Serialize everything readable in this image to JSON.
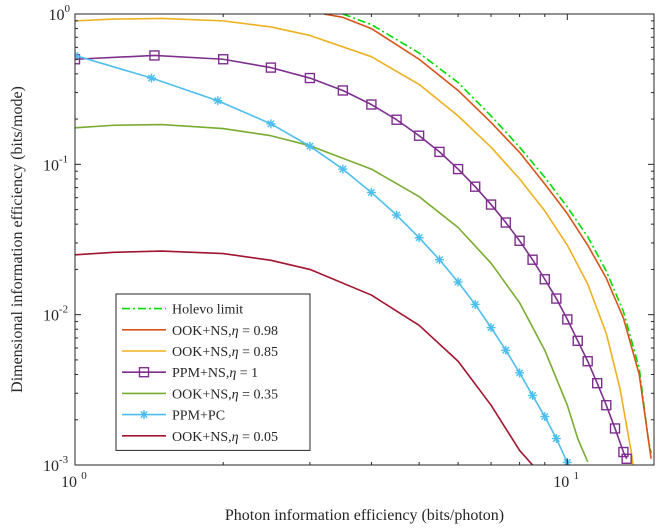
{
  "chart_data": {
    "type": "line",
    "title": "",
    "xlabel": "Photon information efficiency (bits/photon)",
    "ylabel": "Dimensional information efficiency (bits/mode)",
    "xscale": "log",
    "yscale": "log",
    "xlim": [
      1,
      15
    ],
    "ylim": [
      0.001,
      1
    ],
    "grid": false,
    "legend_position": "bottom-left",
    "x_ticks": [
      {
        "base": "10",
        "exp": "0",
        "value": 1
      },
      {
        "base": "10",
        "exp": "1",
        "value": 10
      }
    ],
    "y_ticks": [
      {
        "base": "10",
        "exp": "-3",
        "value": 0.001
      },
      {
        "base": "10",
        "exp": "-2",
        "value": 0.01
      },
      {
        "base": "10",
        "exp": "-1",
        "value": 0.1
      },
      {
        "base": "10",
        "exp": "0",
        "value": 1
      }
    ],
    "series": [
      {
        "name": "Holevo limit",
        "legend_prefix": "Holevo limit",
        "legend_eta": "",
        "color": "#00dd00",
        "dash": "8 3 2 3",
        "marker": "none",
        "points": [
          [
            3.5,
            1.0
          ],
          [
            4,
            0.85
          ],
          [
            5,
            0.55
          ],
          [
            6,
            0.35
          ],
          [
            7,
            0.21
          ],
          [
            8,
            0.13
          ],
          [
            9,
            0.082
          ],
          [
            10,
            0.052
          ],
          [
            11,
            0.033
          ],
          [
            12,
            0.0195
          ],
          [
            13,
            0.0105
          ],
          [
            14,
            0.0044
          ],
          [
            14.6,
            0.0015
          ],
          [
            14.8,
            0.0012
          ]
        ]
      },
      {
        "name": "OOK+NS, η = 0.98",
        "legend_prefix": "OOK+NS,",
        "legend_eta": " = 0.98",
        "color": "#d95319",
        "dash": "",
        "marker": "none",
        "points": [
          [
            3.2,
            1.0
          ],
          [
            3.5,
            0.95
          ],
          [
            4,
            0.8
          ],
          [
            5,
            0.5
          ],
          [
            6,
            0.31
          ],
          [
            7,
            0.19
          ],
          [
            8,
            0.12
          ],
          [
            9,
            0.074
          ],
          [
            10,
            0.047
          ],
          [
            11,
            0.029
          ],
          [
            12,
            0.0175
          ],
          [
            13,
            0.0095
          ],
          [
            14,
            0.004
          ],
          [
            14.6,
            0.0015
          ],
          [
            14.8,
            0.0011
          ]
        ]
      },
      {
        "name": "OOK+NS, η = 0.85",
        "legend_prefix": "OOK+NS,",
        "legend_eta": " = 0.85",
        "color": "#edb120",
        "dash": "",
        "marker": "none",
        "points": [
          [
            1,
            0.9
          ],
          [
            1.2,
            0.925
          ],
          [
            1.5,
            0.935
          ],
          [
            2,
            0.9
          ],
          [
            2.5,
            0.82
          ],
          [
            3,
            0.72
          ],
          [
            4,
            0.52
          ],
          [
            5,
            0.34
          ],
          [
            6,
            0.21
          ],
          [
            7,
            0.13
          ],
          [
            8,
            0.08
          ],
          [
            9,
            0.049
          ],
          [
            10,
            0.029
          ],
          [
            11,
            0.016
          ],
          [
            12,
            0.0075
          ],
          [
            12.8,
            0.0032
          ],
          [
            13.5,
            0.0012
          ],
          [
            13.6,
            0.001
          ]
        ]
      },
      {
        "name": "PPM+NS, η = 1",
        "legend_prefix": "PPM+NS,",
        "legend_eta": " = 1",
        "color": "#7e2f8e",
        "dash": "",
        "marker": "square",
        "points": [
          [
            1,
            0.5
          ],
          [
            1.45,
            0.53
          ],
          [
            2,
            0.5
          ],
          [
            2.5,
            0.44
          ],
          [
            3,
            0.375
          ],
          [
            3.5,
            0.31
          ],
          [
            4,
            0.25
          ],
          [
            4.5,
            0.198
          ],
          [
            5,
            0.155
          ],
          [
            5.5,
            0.121
          ],
          [
            6,
            0.093
          ],
          [
            6.5,
            0.071
          ],
          [
            7,
            0.054
          ],
          [
            7.5,
            0.041
          ],
          [
            8,
            0.031
          ],
          [
            8.5,
            0.0232
          ],
          [
            9,
            0.0172
          ],
          [
            9.5,
            0.0128
          ],
          [
            10,
            0.0093
          ],
          [
            10.5,
            0.0067
          ],
          [
            11,
            0.0049
          ],
          [
            11.5,
            0.0035
          ],
          [
            12,
            0.0025
          ],
          [
            12.5,
            0.00175
          ],
          [
            13,
            0.00122
          ],
          [
            13.2,
            0.0011
          ]
        ]
      },
      {
        "name": "OOK+NS, η = 0.35",
        "legend_prefix": "OOK+NS,",
        "legend_eta": " = 0.35",
        "color": "#77ac30",
        "dash": "",
        "marker": "none",
        "points": [
          [
            1,
            0.175
          ],
          [
            1.2,
            0.182
          ],
          [
            1.5,
            0.184
          ],
          [
            2,
            0.173
          ],
          [
            2.5,
            0.155
          ],
          [
            3,
            0.133
          ],
          [
            4,
            0.093
          ],
          [
            5,
            0.061
          ],
          [
            6,
            0.038
          ],
          [
            7,
            0.022
          ],
          [
            8,
            0.012
          ],
          [
            9,
            0.0058
          ],
          [
            10,
            0.0025
          ],
          [
            10.5,
            0.0015
          ],
          [
            11,
            0.00105
          ]
        ]
      },
      {
        "name": "PPM+PC",
        "legend_prefix": "PPM+PC",
        "legend_eta": "",
        "color": "#4dbeee",
        "dash": "",
        "marker": "asterisk",
        "points": [
          [
            1,
            0.53
          ],
          [
            1.43,
            0.375
          ],
          [
            1.95,
            0.265
          ],
          [
            2.5,
            0.186
          ],
          [
            3,
            0.132
          ],
          [
            3.5,
            0.093
          ],
          [
            4,
            0.065
          ],
          [
            4.5,
            0.046
          ],
          [
            5,
            0.0325
          ],
          [
            5.5,
            0.0232
          ],
          [
            6,
            0.0165
          ],
          [
            6.5,
            0.0117
          ],
          [
            7,
            0.0082
          ],
          [
            7.5,
            0.0058
          ],
          [
            8,
            0.0041
          ],
          [
            8.5,
            0.0029
          ],
          [
            9,
            0.0021
          ],
          [
            9.5,
            0.0015
          ],
          [
            10,
            0.00104
          ]
        ]
      },
      {
        "name": "OOK+NS, η = 0.05",
        "legend_prefix": "OOK+NS,",
        "legend_eta": " = 0.05",
        "color": "#a2142f",
        "dash": "",
        "marker": "none",
        "points": [
          [
            1,
            0.025
          ],
          [
            1.2,
            0.026
          ],
          [
            1.5,
            0.0265
          ],
          [
            2,
            0.0255
          ],
          [
            2.5,
            0.023
          ],
          [
            3,
            0.02
          ],
          [
            4,
            0.0135
          ],
          [
            5,
            0.0085
          ],
          [
            6,
            0.0049
          ],
          [
            7,
            0.0025
          ],
          [
            8,
            0.00125
          ],
          [
            8.5,
            0.001
          ]
        ]
      }
    ],
    "legend_order": [
      0,
      1,
      2,
      3,
      4,
      5,
      6
    ]
  }
}
